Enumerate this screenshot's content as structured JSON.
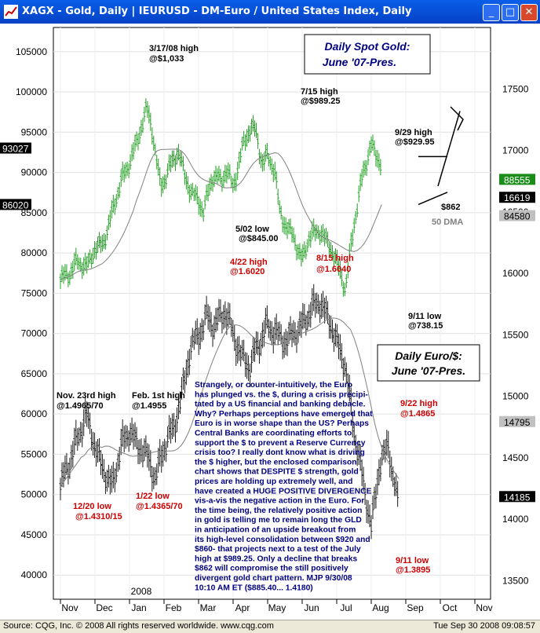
{
  "window": {
    "title": "XAGX - Gold, Daily    |    IEURUSD - DM-Euro / United States Index, Daily",
    "minimize": "_",
    "maximize": "□",
    "close": "✕"
  },
  "status": {
    "left": "Source: CQG, Inc. © 2008 All rights reserved worldwide. www.cqg.com",
    "right": "Tue Sep 30 2008 09:08:57"
  },
  "colors": {
    "gold": "#22a022",
    "euro": "#1a1a1a",
    "dma": "#808080",
    "annot_red": "#cc0000",
    "annot_blue": "#000080"
  },
  "chart_data": {
    "type": "bar",
    "year_label": "2008",
    "x_ticks": [
      "Nov",
      "Dec",
      "Jan",
      "Feb",
      "Mar",
      "Apr",
      "May",
      "Jun",
      "Jul",
      "Aug",
      "Sep",
      "Oct",
      "Nov"
    ],
    "left_axis": {
      "ylim": [
        37000,
        108000
      ],
      "ticks": [
        40000,
        45000,
        50000,
        55000,
        60000,
        65000,
        70000,
        75000,
        80000,
        85000,
        90000,
        95000,
        100000,
        105000
      ]
    },
    "right_axis": {
      "ylim": [
        13350,
        18000
      ],
      "ticks": [
        13500,
        14000,
        14500,
        15000,
        15500,
        16000,
        16500,
        17000,
        17500
      ]
    },
    "markers_left": [
      {
        "value": 93027,
        "label": "93027"
      },
      {
        "value": 86020,
        "label": "86020"
      }
    ],
    "markers_right": [
      {
        "value": 16765,
        "label": "88555",
        "style": "green"
      },
      {
        "value": 16619,
        "label": "16619",
        "style": "black"
      },
      {
        "value": 16470,
        "label": "84580",
        "style": "gray"
      },
      {
        "value": 14795,
        "label": "14795",
        "style": "gray"
      },
      {
        "value": 14185,
        "label": "14185",
        "style": "black"
      }
    ],
    "series": [
      {
        "name": "XAGX - Gold, Daily",
        "scale": "right",
        "points": [
          [
            0,
            15950
          ],
          [
            0.5,
            16000
          ],
          [
            1,
            16100
          ],
          [
            1.5,
            16050
          ],
          [
            2,
            16200
          ],
          [
            2.5,
            16250
          ],
          [
            3,
            16500
          ],
          [
            3.5,
            16750
          ],
          [
            4,
            16900
          ],
          [
            4.5,
            17100
          ],
          [
            5,
            17350
          ],
          [
            5.3,
            17180
          ],
          [
            5.8,
            16700
          ],
          [
            6.3,
            16850
          ],
          [
            6.8,
            17000
          ],
          [
            7.2,
            16800
          ],
          [
            7.6,
            16650
          ],
          [
            8,
            16600
          ],
          [
            8.3,
            16500
          ],
          [
            8.8,
            16800
          ],
          [
            9.3,
            16750
          ],
          [
            9.6,
            16850
          ],
          [
            10,
            16700
          ],
          [
            10.5,
            17000
          ],
          [
            11,
            17200
          ],
          [
            11.3,
            17150
          ],
          [
            11.7,
            16900
          ],
          [
            12,
            16950
          ],
          [
            12.4,
            16850
          ],
          [
            12.7,
            16500
          ],
          [
            13,
            16400
          ],
          [
            13.5,
            16300
          ],
          [
            14,
            16100
          ],
          [
            14.4,
            16300
          ],
          [
            15,
            16350
          ],
          [
            15.5,
            16250
          ],
          [
            16,
            16100
          ],
          [
            16.5,
            15870
          ],
          [
            17,
            16400
          ],
          [
            17.5,
            16800
          ],
          [
            18,
            17050
          ],
          [
            18.3,
            16950
          ],
          [
            18.6,
            16900
          ]
        ]
      },
      {
        "name": "IEURUSD - DM-Euro / United States Index, Daily",
        "scale": "left",
        "points": [
          [
            0,
            51000
          ],
          [
            0.5,
            54000
          ],
          [
            1,
            57000
          ],
          [
            1.5,
            60000
          ],
          [
            2,
            56000
          ],
          [
            2.5,
            53000
          ],
          [
            3,
            51000
          ],
          [
            3.5,
            56000
          ],
          [
            4,
            58000
          ],
          [
            4.5,
            56000
          ],
          [
            5,
            55000
          ],
          [
            5.5,
            52000
          ],
          [
            6,
            56000
          ],
          [
            6.5,
            58000
          ],
          [
            7,
            62000
          ],
          [
            7.5,
            68000
          ],
          [
            8,
            70000
          ],
          [
            8.5,
            72000
          ],
          [
            9,
            71000
          ],
          [
            9.5,
            73000
          ],
          [
            10,
            70000
          ],
          [
            10.5,
            67000
          ],
          [
            11,
            66000
          ],
          [
            11.5,
            69000
          ],
          [
            12,
            71000
          ],
          [
            12.5,
            70000
          ],
          [
            13,
            69000
          ],
          [
            13.5,
            70000
          ],
          [
            14,
            71000
          ],
          [
            14.5,
            73000
          ],
          [
            15,
            74000
          ],
          [
            15.5,
            72000
          ],
          [
            16,
            69000
          ],
          [
            16.5,
            66000
          ],
          [
            17,
            58000
          ],
          [
            17.5,
            52000
          ],
          [
            18,
            46000
          ],
          [
            18.5,
            54000
          ],
          [
            19,
            56000
          ],
          [
            19.3,
            52000
          ],
          [
            19.6,
            48000
          ]
        ]
      },
      {
        "name": "50 DMA",
        "scale": "right"
      },
      {
        "name": "50 DMA",
        "scale": "left"
      }
    ],
    "annotations": [
      {
        "text": "3/17/08 high",
        "color": "black"
      },
      {
        "text": "@$1,033",
        "color": "black"
      },
      {
        "text": "7/15 high",
        "color": "black"
      },
      {
        "text": "@$989.25",
        "color": "black"
      },
      {
        "text": "9/29 high",
        "color": "black"
      },
      {
        "text": "@$929.95",
        "color": "black"
      },
      {
        "text": "5/02 low",
        "color": "black"
      },
      {
        "text": "@$845.00",
        "color": "black"
      },
      {
        "text": "$862",
        "color": "black"
      },
      {
        "text": "50 DMA",
        "color": "gray"
      },
      {
        "text": "9/11 low",
        "color": "black"
      },
      {
        "text": "@738.15",
        "color": "black"
      },
      {
        "text": "4/22 high",
        "color": "red"
      },
      {
        "text": "@1.6020",
        "color": "red"
      },
      {
        "text": "8/15 high",
        "color": "red"
      },
      {
        "text": "@1.6040",
        "color": "red"
      },
      {
        "text": "Nov. 23rd high",
        "color": "black"
      },
      {
        "text": "@1.4965/70",
        "color": "black"
      },
      {
        "text": "Feb. 1st high",
        "color": "black"
      },
      {
        "text": "@1.4955",
        "color": "black"
      },
      {
        "text": "12/20 low",
        "color": "red"
      },
      {
        "text": "@1.4310/15",
        "color": "red"
      },
      {
        "text": "1/22 low",
        "color": "red"
      },
      {
        "text": "@1.4365/70",
        "color": "red"
      },
      {
        "text": "9/22 high",
        "color": "red"
      },
      {
        "text": "@1.4865",
        "color": "red"
      },
      {
        "text": "9/11 low",
        "color": "red"
      },
      {
        "text": "@1.3895",
        "color": "red"
      }
    ],
    "boxes": [
      {
        "lines": [
          "Daily Spot Gold:",
          "June '07-Pres."
        ]
      },
      {
        "lines": [
          "Daily Euro/$:",
          "June '07-Pres."
        ]
      }
    ],
    "commentary": [
      "Strangely, or counter-intuitively, the Euro",
      "has plunged vs. the $, during a crisis precipi-",
      "tated by a US financial and banking debacle.",
      "Why? Perhaps perceptions have emerged that",
      "Euro is in worse shape than the US? Perhaps",
      "Central Banks are coordinating efforts to",
      "support the $ to prevent a Reserve Currency",
      "crisis too? I really dont know what is driving",
      "the $ higher, but the enclosed comparison",
      "chart shows that DESPITE $ strength, gold",
      "prices are holding up extremely well, and",
      "have created a HUGE POSITIVE DIVERGENCE",
      "vis-a-vis the negative action in the Euro. For",
      "the time being, the relatively positive action",
      "in gold is telling me to remain long the GLD",
      "in anticipation of an upside breakout from",
      "its high-level consolidation between $920 and",
      "$860- that projects next to a test of the July",
      "high at $989.25. Only a decline that breaks",
      "$862 will compromise the still positively",
      "divergent gold chart pattern. MJP 9/30/08",
      "10:10 AM ET ($885.40... 1.4180)"
    ]
  }
}
